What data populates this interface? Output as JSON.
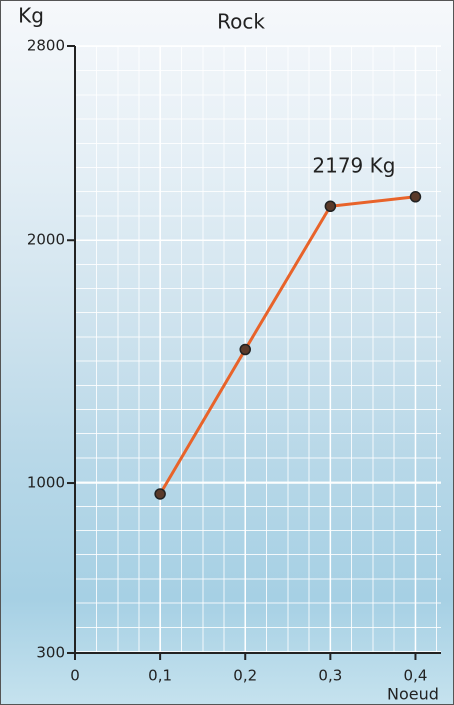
{
  "chart_data": {
    "type": "line",
    "title": "Rock",
    "y_label": "Kg",
    "x_label": "Noeud",
    "x": [
      0.1,
      0.2,
      0.3,
      0.4
    ],
    "series": [
      {
        "color": "#e8632a",
        "values": [
          955,
          1550,
          2140,
          2179
        ]
      }
    ],
    "annotation": "2179 Kg",
    "xlim": [
      0,
      0.43
    ],
    "xticks": [
      0,
      {
        "value": 0.1,
        "label": "0,1"
      },
      {
        "value": 0.2,
        "label": "0,2"
      },
      {
        "value": 0.3,
        "label": "0,3"
      },
      {
        "value": 0.4,
        "label": "0,4"
      }
    ],
    "ylim": [
      300,
      2800
    ],
    "yticks": [
      300,
      1000,
      2000,
      2800
    ],
    "grid": true
  }
}
